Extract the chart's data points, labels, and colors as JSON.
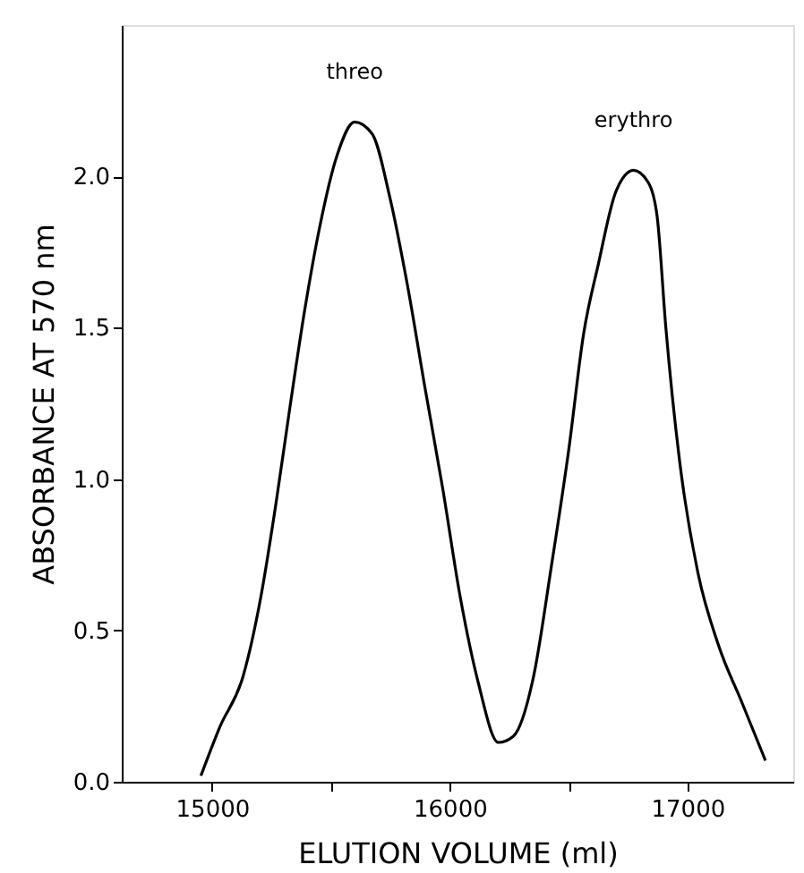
{
  "chart_data": {
    "type": "line",
    "xlabel": "ELUTION VOLUME (ml)",
    "ylabel": "ABSORBANCE AT 570 nm",
    "x": [
      14953,
      15032,
      15131,
      15205,
      15267,
      15328,
      15390,
      15452,
      15526,
      15600,
      15674,
      15748,
      15822,
      15896,
      15970,
      16044,
      16119,
      16205,
      16267,
      16353,
      16427,
      16501,
      16563,
      16625,
      16699,
      16773,
      16835,
      16872,
      16909,
      16970,
      17044,
      17131,
      17230,
      17328
    ],
    "series": [
      {
        "color": "#000000",
        "values": [
          0.02,
          0.18,
          0.35,
          0.61,
          0.91,
          1.24,
          1.56,
          1.83,
          2.07,
          2.18,
          2.14,
          1.93,
          1.64,
          1.3,
          0.97,
          0.61,
          0.33,
          0.13,
          0.15,
          0.35,
          0.71,
          1.1,
          1.48,
          1.71,
          1.95,
          2.02,
          1.98,
          1.87,
          1.5,
          1.04,
          0.69,
          0.45,
          0.26,
          0.07
        ]
      }
    ],
    "xlim": [
      14620,
      17445
    ],
    "ylim": [
      0,
      2.5
    ],
    "xticks": [
      15000,
      {
        "value": 15500,
        "label": null
      },
      16000,
      {
        "value": 16500,
        "label": null
      },
      17000
    ],
    "yticks": [
      {
        "value": 0,
        "label": "0.0"
      },
      0.5,
      {
        "value": 1,
        "label": "1.0"
      },
      1.5,
      {
        "value": 2,
        "label": "2.0"
      }
    ],
    "annotations": [
      "threo",
      "erythro"
    ],
    "grid": false,
    "marker": "none",
    "line_style": "solid"
  }
}
